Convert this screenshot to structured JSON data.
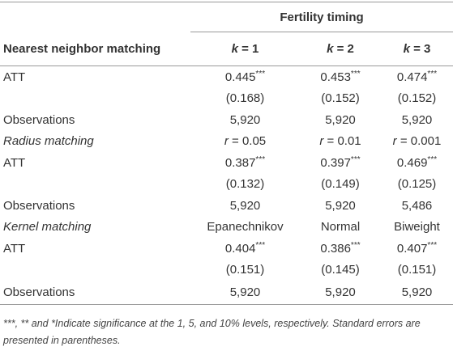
{
  "table": {
    "group_header": "Fertility timing",
    "row_header": "Nearest neighbor matching",
    "columns": [
      {
        "symbol": "k",
        "text": "= 1"
      },
      {
        "symbol": "k",
        "text": "= 2"
      },
      {
        "symbol": "k",
        "text": "= 3"
      }
    ],
    "rows": [
      {
        "label": "ATT",
        "cells": [
          {
            "text": "0.445",
            "sup": "***"
          },
          {
            "text": "0.453",
            "sup": "***"
          },
          {
            "text": "0.474",
            "sup": "***"
          }
        ]
      },
      {
        "label": null,
        "cells": [
          {
            "text": "(0.168)"
          },
          {
            "text": "(0.152)"
          },
          {
            "text": "(0.152)"
          }
        ]
      },
      {
        "label": "Observations",
        "cells": [
          {
            "text": "5,920"
          },
          {
            "text": "5,920"
          },
          {
            "text": "5,920"
          }
        ]
      },
      {
        "label": "Radius matching",
        "italic": true,
        "cells": [
          {
            "symbol": "r",
            "text": "= 0.05"
          },
          {
            "symbol": "r",
            "text": "= 0.01"
          },
          {
            "symbol": "r",
            "text": "= 0.001"
          }
        ]
      },
      {
        "label": "ATT",
        "cells": [
          {
            "text": "0.387",
            "sup": "***"
          },
          {
            "text": "0.397",
            "sup": "***"
          },
          {
            "text": "0.469",
            "sup": "***"
          }
        ]
      },
      {
        "label": null,
        "cells": [
          {
            "text": "(0.132)"
          },
          {
            "text": "(0.149)"
          },
          {
            "text": "(0.125)"
          }
        ]
      },
      {
        "label": "Observations",
        "cells": [
          {
            "text": "5,920"
          },
          {
            "text": "5,920"
          },
          {
            "text": "5,486"
          }
        ]
      },
      {
        "label": "Kernel matching",
        "italic": true,
        "cells": [
          {
            "text": "Epanechnikov"
          },
          {
            "text": "Normal"
          },
          {
            "text": "Biweight"
          }
        ]
      },
      {
        "label": "ATT",
        "cells": [
          {
            "text": "0.404",
            "sup": "***"
          },
          {
            "text": "0.386",
            "sup": "***"
          },
          {
            "text": "0.407",
            "sup": "***"
          }
        ]
      },
      {
        "label": null,
        "cells": [
          {
            "text": "(0.151)"
          },
          {
            "text": "(0.145)"
          },
          {
            "text": "(0.151)"
          }
        ]
      },
      {
        "label": "Observations",
        "cells": [
          {
            "text": "5,920"
          },
          {
            "text": "5,920"
          },
          {
            "text": "5,920"
          }
        ]
      }
    ],
    "footnote": "***, ** and *Indicate significance at the 1, 5, and 10% levels, respectively. Standard errors are presented in parentheses."
  }
}
